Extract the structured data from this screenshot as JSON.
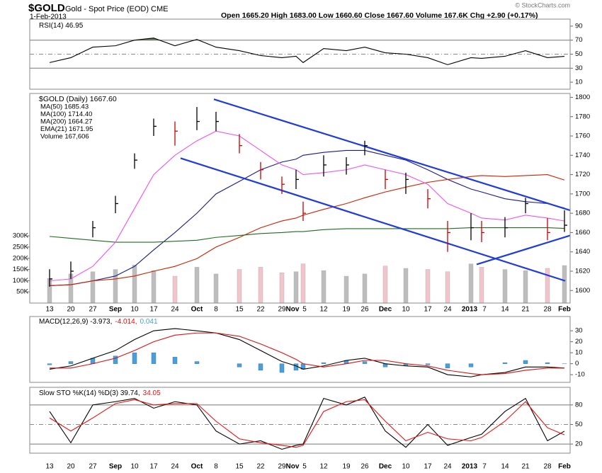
{
  "header": {
    "symbol": "$GOLD",
    "name": "Gold - Spot Price (EOD) CME",
    "date": "1-Feb-2013",
    "quote": "Open 1665.20 High 1683.00 Low 1660.60 Close 1667.60 Volume 167.6K Chg +2.90 (+0.17%)",
    "copyright": "© StockCharts.com"
  },
  "chart_data": [
    {
      "type": "rsi",
      "ylim": [
        0,
        100
      ],
      "yticks": [
        90,
        70,
        50,
        30,
        10
      ],
      "bands": [
        70,
        30
      ],
      "midline": 50,
      "fill_color": "#6b7d5e",
      "series": [
        {
          "name": "RSI(14) 46.95",
          "color": "#000000",
          "values": [
            38,
            45,
            60,
            62,
            70,
            73,
            62,
            71,
            60,
            55,
            48,
            45,
            47,
            38,
            58,
            55,
            60,
            52,
            50,
            45,
            35,
            45,
            44,
            47,
            55,
            45,
            46.95
          ]
        }
      ]
    },
    {
      "type": "ohlc",
      "categories": [
        "13",
        "20",
        "27",
        "Sep",
        "10",
        "17",
        "24",
        "Oct",
        "8",
        "15",
        "22",
        "29",
        "Nov",
        "5",
        "12",
        "19",
        "26",
        "Dec",
        "10",
        "17",
        "24",
        "2013",
        "7",
        "14",
        "21",
        "28",
        "Feb"
      ],
      "ylim": [
        1587,
        1804
      ],
      "yticks": [
        1600,
        1620,
        1640,
        1660,
        1680,
        1700,
        1720,
        1740,
        1760,
        1780,
        1800
      ],
      "y2lim": [
        0,
        936000
      ],
      "y2ticks": [
        {
          "value": 50000,
          "label": "50K"
        },
        {
          "value": 100000,
          "label": "100K"
        },
        {
          "value": 150000,
          "label": "150K"
        },
        {
          "value": 200000,
          "label": "200K"
        },
        {
          "value": 250000,
          "label": "250K"
        },
        {
          "value": 300000,
          "label": "300K"
        }
      ],
      "price": {
        "name": "$GOLD (Daily) 1667.60",
        "up_color": "#000000",
        "down_color": "#cc0000",
        "high": [
          1622,
          1630,
          1672,
          1698,
          1742,
          1778,
          1775,
          1790,
          1785,
          1762,
          1733,
          1718,
          1725,
          1692,
          1740,
          1738,
          1755,
          1725,
          1722,
          1705,
          1672,
          1680,
          1672,
          1676,
          1696,
          1675,
          1683
        ],
        "low": [
          1604,
          1612,
          1655,
          1680,
          1726,
          1760,
          1750,
          1766,
          1765,
          1742,
          1715,
          1700,
          1705,
          1672,
          1718,
          1720,
          1740,
          1705,
          1700,
          1685,
          1640,
          1652,
          1650,
          1655,
          1680,
          1652,
          1660.6
        ],
        "close": [
          1612,
          1620,
          1665,
          1690,
          1735,
          1770,
          1765,
          1775,
          1775,
          1750,
          1725,
          1710,
          1715,
          1680,
          1730,
          1730,
          1750,
          1715,
          1715,
          1695,
          1660,
          1665,
          1660,
          1665,
          1690,
          1660,
          1667.6
        ]
      },
      "series": [
        {
          "name": "MA(50) 1685.43",
          "color": "#1a1a8c",
          "values": [
            1605,
            1606,
            1610,
            1615,
            1625,
            1642,
            1660,
            1680,
            1700,
            1713,
            1725,
            1733,
            1736,
            1740,
            1743,
            1745,
            1745,
            1740,
            1735,
            1725,
            1715,
            1705,
            1702,
            1695,
            1692,
            1690,
            1685.43
          ]
        },
        {
          "name": "MA(100) 1714.40",
          "color": "#cc2200",
          "values": [
            1605,
            1606,
            1610,
            1612,
            1615,
            1620,
            1625,
            1633,
            1645,
            1655,
            1665,
            1672,
            1675,
            1678,
            1684,
            1690,
            1696,
            1702,
            1707,
            1712,
            1715,
            1718,
            1719,
            1718,
            1719,
            1720,
            1714.4
          ]
        },
        {
          "name": "MA(200) 1664.27",
          "color": "#1f6b1f",
          "values": [
            1656,
            1654,
            1652,
            1650,
            1650,
            1650,
            1651,
            1652,
            1655,
            1657,
            1659,
            1660,
            1661,
            1661,
            1663,
            1664,
            1664,
            1664,
            1664,
            1664,
            1664,
            1665,
            1665,
            1665,
            1665,
            1665,
            1664.27
          ]
        },
        {
          "name": "EMA(21) 1671.95",
          "color": "#ee55ee",
          "values": [
            1610,
            1612,
            1625,
            1650,
            1685,
            1720,
            1740,
            1755,
            1765,
            1760,
            1745,
            1730,
            1725,
            1720,
            1722,
            1725,
            1730,
            1725,
            1720,
            1710,
            1690,
            1680,
            1675,
            1673,
            1678,
            1675,
            1671.95
          ]
        }
      ],
      "volume": {
        "name": "Volume 167,606",
        "axis": "y2",
        "color": "#bdbdbd",
        "down_color": "#f2c4cc",
        "values": [
          110000,
          130000,
          140000,
          150000,
          170000,
          145000,
          120000,
          160000,
          130000,
          150000,
          160000,
          135000,
          140000,
          175000,
          145000,
          120000,
          130000,
          165000,
          155000,
          150000,
          140000,
          175000,
          160000,
          150000,
          145000,
          155000,
          167606
        ]
      },
      "trendlines": [
        {
          "color": "#1f3bdc",
          "start": 1798,
          "end": 1683
        },
        {
          "color": "#1f3bdc",
          "start": 1737,
          "end": 1610
        },
        {
          "color": "#1f3bdc",
          "start": 1627,
          "end": 1657
        }
      ]
    },
    {
      "type": "macd",
      "ylim": [
        -17,
        43
      ],
      "yticks": [
        30,
        20,
        10,
        0,
        -10
      ],
      "series": [
        {
          "name": "MACD(12,26,9) -3.973,",
          "color": "#000000",
          "values": [
            -5,
            -2,
            5,
            12,
            22,
            30,
            32,
            30,
            28,
            22,
            12,
            2,
            -2,
            -5,
            -2,
            3,
            5,
            0,
            -2,
            -3,
            -10,
            -12,
            -10,
            -8,
            -3,
            -3,
            -3.973
          ]
        },
        {
          "name": "-4.014,",
          "color": "#dd1111",
          "values": [
            -4,
            -4,
            0,
            5,
            12,
            20,
            26,
            28,
            28,
            25,
            18,
            10,
            4,
            0,
            -3,
            0,
            3,
            3,
            0,
            -2,
            -6,
            -9,
            -10,
            -9,
            -6,
            -4,
            -4.014
          ]
        },
        {
          "name": "0.041",
          "color": "#4a9fd8",
          "histogram": true,
          "values": [
            -1,
            2,
            5,
            7,
            10,
            10,
            6,
            2,
            0,
            -3,
            -6,
            -8,
            -6,
            -5,
            1,
            3,
            2,
            -3,
            -2,
            -1,
            -4,
            -3,
            0,
            1,
            3,
            1,
            0.041
          ]
        }
      ]
    },
    {
      "type": "stochastic",
      "ylim": [
        6,
        107
      ],
      "yticks": [
        80,
        50,
        20
      ],
      "bands": [
        80,
        20
      ],
      "midline": 50,
      "categories": [
        "13",
        "20",
        "27",
        "Sep",
        "10",
        "17",
        "24",
        "Oct",
        "8",
        "15",
        "22",
        "29",
        "Nov",
        "5",
        "12",
        "19",
        "26",
        "Dec",
        "10",
        "17",
        "24",
        "2013",
        "7",
        "14",
        "21",
        "28",
        "Feb"
      ],
      "series": [
        {
          "name": "Slow STO %K(14) %D(3) 39.74,",
          "color": "#000000",
          "values": [
            70,
            22,
            80,
            85,
            90,
            75,
            85,
            80,
            40,
            20,
            25,
            12,
            18,
            20,
            90,
            80,
            92,
            40,
            15,
            50,
            18,
            30,
            35,
            70,
            90,
            25,
            39.74
          ]
        },
        {
          "name": "34.05",
          "color": "#ee1111",
          "values": [
            60,
            40,
            60,
            82,
            88,
            80,
            82,
            82,
            55,
            28,
            22,
            18,
            15,
            18,
            70,
            85,
            88,
            55,
            25,
            38,
            28,
            25,
            30,
            55,
            85,
            45,
            34.05
          ]
        }
      ]
    }
  ]
}
